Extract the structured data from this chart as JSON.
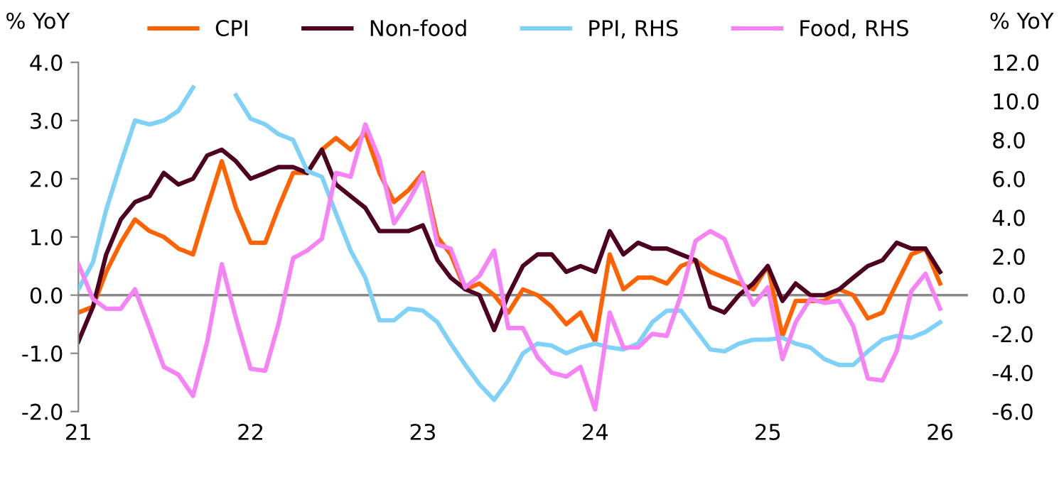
{
  "chart_data": {
    "type": "line",
    "ylabel": "% YoY",
    "y2label": "% YoY",
    "x": [
      "2021-01",
      "2021-02",
      "2021-03",
      "2021-04",
      "2021-05",
      "2021-06",
      "2021-07",
      "2021-08",
      "2021-09",
      "2021-10",
      "2021-11",
      "2021-12",
      "2022-01",
      "2022-02",
      "2022-03",
      "2022-04",
      "2022-05",
      "2022-06",
      "2022-07",
      "2022-08",
      "2022-09",
      "2022-10",
      "2022-11",
      "2022-12",
      "2023-01",
      "2023-02",
      "2023-03",
      "2023-04",
      "2023-05",
      "2023-06",
      "2023-07",
      "2023-08",
      "2023-09",
      "2023-10",
      "2023-11",
      "2023-12",
      "2024-01",
      "2024-02",
      "2024-03",
      "2024-04",
      "2024-05",
      "2024-06",
      "2024-07",
      "2024-08",
      "2024-09",
      "2024-10",
      "2024-11",
      "2024-12",
      "2025-01",
      "2025-02",
      "2025-03",
      "2025-04",
      "2025-05",
      "2025-06",
      "2025-07",
      "2025-08",
      "2025-09",
      "2025-10",
      "2025-11",
      "2025-12",
      "2026-01"
    ],
    "series": [
      {
        "name": "CPI",
        "color": "#ff6200",
        "values": [
          -0.3,
          -0.2,
          0.4,
          0.9,
          1.3,
          1.1,
          1.0,
          0.8,
          0.7,
          1.5,
          2.3,
          1.5,
          0.9,
          0.9,
          1.5,
          2.1,
          2.1,
          2.5,
          2.7,
          2.5,
          2.8,
          2.1,
          1.6,
          1.8,
          2.1,
          1.0,
          0.7,
          0.1,
          0.2,
          0.0,
          -0.3,
          0.1,
          0.0,
          -0.2,
          -0.5,
          -0.3,
          -0.8,
          0.7,
          0.1,
          0.3,
          0.3,
          0.2,
          0.5,
          0.6,
          0.4,
          0.3,
          0.2,
          0.1,
          0.5,
          -0.7,
          -0.1,
          -0.1,
          -0.1,
          0.1,
          0.0,
          -0.4,
          -0.3,
          0.2,
          0.7,
          0.8,
          0.2
        ]
      },
      {
        "name": "Non-food",
        "color": "#4d0020",
        "values": [
          -0.8,
          -0.2,
          0.7,
          1.3,
          1.6,
          1.7,
          2.1,
          1.9,
          2.0,
          2.4,
          2.5,
          2.3,
          2.0,
          2.1,
          2.2,
          2.2,
          2.1,
          2.5,
          1.9,
          1.7,
          1.5,
          1.1,
          1.1,
          1.1,
          1.2,
          0.6,
          0.3,
          0.1,
          0.0,
          -0.6,
          0.0,
          0.5,
          0.7,
          0.7,
          0.4,
          0.5,
          0.4,
          1.1,
          0.7,
          0.9,
          0.8,
          0.8,
          0.7,
          0.6,
          -0.2,
          -0.3,
          0.0,
          0.2,
          0.5,
          -0.1,
          0.2,
          0.0,
          0.0,
          0.1,
          0.3,
          0.5,
          0.6,
          0.9,
          0.8,
          0.8,
          0.4
        ]
      },
      {
        "name": "PPI, RHS",
        "color": "#7fd1f7",
        "axis": "y2",
        "values": [
          0.3,
          1.7,
          4.4,
          6.8,
          9.0,
          8.8,
          9.0,
          9.5,
          10.7,
          null,
          null,
          10.3,
          9.1,
          8.8,
          8.3,
          8.0,
          6.4,
          6.1,
          4.2,
          2.3,
          0.9,
          -1.3,
          -1.3,
          -0.7,
          -0.8,
          -1.4,
          -2.5,
          -3.6,
          -4.6,
          -5.4,
          -4.4,
          -3.0,
          -2.5,
          -2.6,
          -3.0,
          -2.7,
          -2.5,
          -2.7,
          -2.8,
          -2.5,
          -1.4,
          -0.8,
          -0.8,
          -1.8,
          -2.8,
          -2.9,
          -2.5,
          -2.3,
          -2.3,
          -2.2,
          -2.5,
          -2.7,
          -3.3,
          -3.6,
          -3.6,
          -2.9,
          -2.3,
          -2.1,
          -2.2,
          -1.9,
          -1.4
        ]
      },
      {
        "name": "Food, RHS",
        "color": "#f583f5",
        "axis": "y2",
        "values": [
          1.6,
          -0.2,
          -0.7,
          -0.7,
          0.3,
          -1.7,
          -3.7,
          -4.1,
          -5.2,
          -2.4,
          1.6,
          -1.2,
          -3.8,
          -3.9,
          -1.5,
          1.9,
          2.3,
          2.9,
          6.3,
          6.1,
          8.8,
          7.0,
          3.7,
          4.8,
          6.2,
          2.6,
          2.4,
          0.4,
          1.0,
          2.3,
          -1.7,
          -1.7,
          -3.2,
          -4.0,
          -4.2,
          -3.7,
          -5.9,
          -0.9,
          -2.7,
          -2.7,
          -2.0,
          -2.1,
          0.0,
          2.8,
          3.3,
          2.9,
          1.0,
          -0.5,
          0.4,
          -3.3,
          -1.4,
          -0.2,
          -0.4,
          -0.3,
          -1.6,
          -4.3,
          -4.4,
          -2.9,
          0.2,
          1.1,
          -0.7
        ]
      }
    ],
    "xlim": [
      "2021-01",
      "2026-03"
    ],
    "xticks": [
      {
        "value": "2021-01",
        "label": "21"
      },
      {
        "value": "2022-01",
        "label": "22"
      },
      {
        "value": "2023-01",
        "label": "23"
      },
      {
        "value": "2024-01",
        "label": "24"
      },
      {
        "value": "2025-01",
        "label": "25"
      },
      {
        "value": "2026-01",
        "label": "26"
      }
    ],
    "ylim": [
      -2.0,
      4.0
    ],
    "yticks": [
      {
        "value": -2.0,
        "label": "-2.0"
      },
      {
        "value": -1.0,
        "label": "-1.0"
      },
      {
        "value": 0.0,
        "label": "0.0"
      },
      {
        "value": 1.0,
        "label": "1.0"
      },
      {
        "value": 2.0,
        "label": "2.0"
      },
      {
        "value": 3.0,
        "label": "3.0"
      },
      {
        "value": 4.0,
        "label": "4.0"
      }
    ],
    "y2lim": [
      -6.0,
      12.0
    ],
    "y2ticks": [
      {
        "value": -6.0,
        "label": "-6.0"
      },
      {
        "value": -4.0,
        "label": "-4.0"
      },
      {
        "value": -2.0,
        "label": "-2.0"
      },
      {
        "value": 0.0,
        "label": "0.0"
      },
      {
        "value": 2.0,
        "label": "2.0"
      },
      {
        "value": 4.0,
        "label": "4.0"
      },
      {
        "value": 6.0,
        "label": "6.0"
      },
      {
        "value": 8.0,
        "label": "8.0"
      },
      {
        "value": 10.0,
        "label": "10.0"
      },
      {
        "value": 12.0,
        "label": "12.0"
      }
    ],
    "ref_lines": [
      {
        "axis": "y",
        "value": 0,
        "color": "#888888"
      }
    ],
    "grid": false,
    "legend": "top",
    "marker": "none",
    "line_style": "solid"
  }
}
